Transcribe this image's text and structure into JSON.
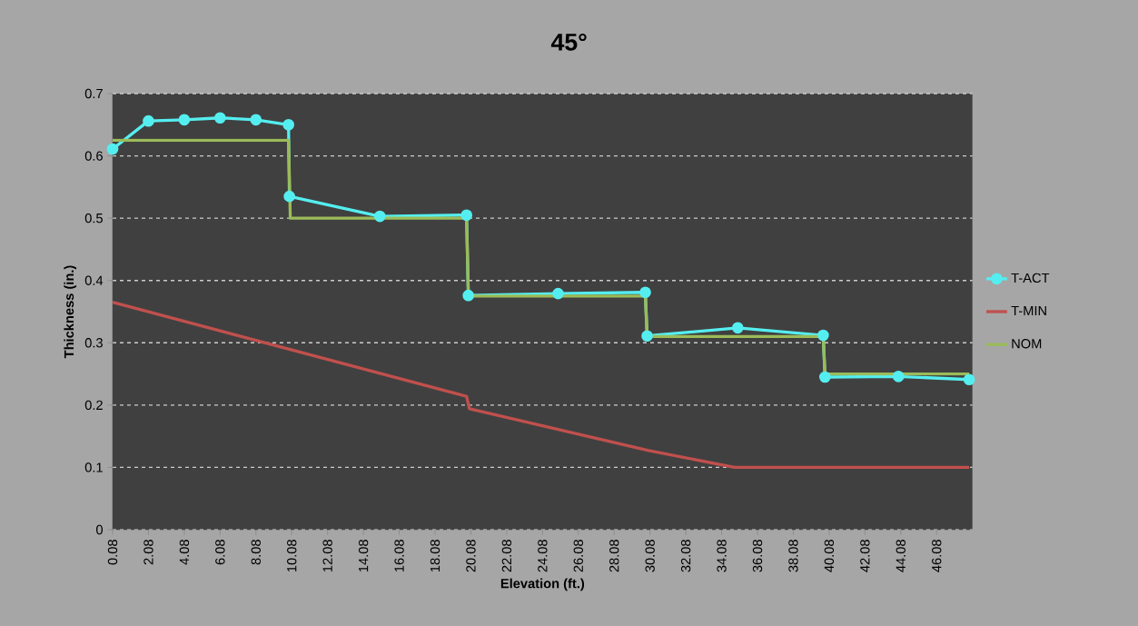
{
  "chart_data": {
    "type": "line",
    "title": "45°",
    "xlabel": "Elevation (ft.)",
    "ylabel": "Thickness (in.)",
    "xlim": [
      0.08,
      48.08
    ],
    "xticks": [
      0.08,
      2.08,
      4.08,
      6.08,
      8.08,
      10.08,
      12.08,
      14.08,
      16.08,
      18.08,
      20.08,
      22.08,
      24.08,
      26.08,
      28.08,
      30.08,
      32.08,
      34.08,
      36.08,
      38.08,
      40.08,
      42.08,
      44.08,
      46.08
    ],
    "ylim": [
      0,
      0.7
    ],
    "yticks": [
      0,
      0.1,
      0.2,
      0.3,
      0.4,
      0.5,
      0.6,
      0.7
    ],
    "grid": "y",
    "legend": "right",
    "line_style": "solid",
    "series": [
      {
        "name": "T-ACT",
        "color": "#55eef0",
        "marker": "circle",
        "x": [
          0.08,
          2.08,
          4.08,
          6.08,
          8.08,
          9.9,
          9.95,
          15.0,
          19.84,
          19.94,
          24.95,
          29.82,
          29.92,
          34.98,
          39.75,
          39.85,
          43.95,
          47.9
        ],
        "values": [
          0.611,
          0.656,
          0.658,
          0.661,
          0.658,
          0.65,
          0.535,
          0.503,
          0.505,
          0.376,
          0.379,
          0.381,
          0.311,
          0.324,
          0.312,
          0.245,
          0.246,
          0.241
        ]
      },
      {
        "name": "T-MIN",
        "color": "#c0504d",
        "marker": "none",
        "x": [
          0.08,
          19.84,
          20.0,
          30.0,
          34.8,
          47.9
        ],
        "values": [
          0.365,
          0.214,
          0.194,
          0.127,
          0.1,
          0.1
        ]
      },
      {
        "name": "NOM",
        "color": "#9bbb59",
        "marker": "none",
        "x": [
          0.08,
          9.9,
          10.0,
          19.84,
          19.94,
          29.82,
          29.92,
          39.75,
          39.85,
          47.9
        ],
        "values": [
          0.625,
          0.625,
          0.5,
          0.5,
          0.375,
          0.375,
          0.31,
          0.31,
          0.25,
          0.25
        ]
      }
    ]
  }
}
